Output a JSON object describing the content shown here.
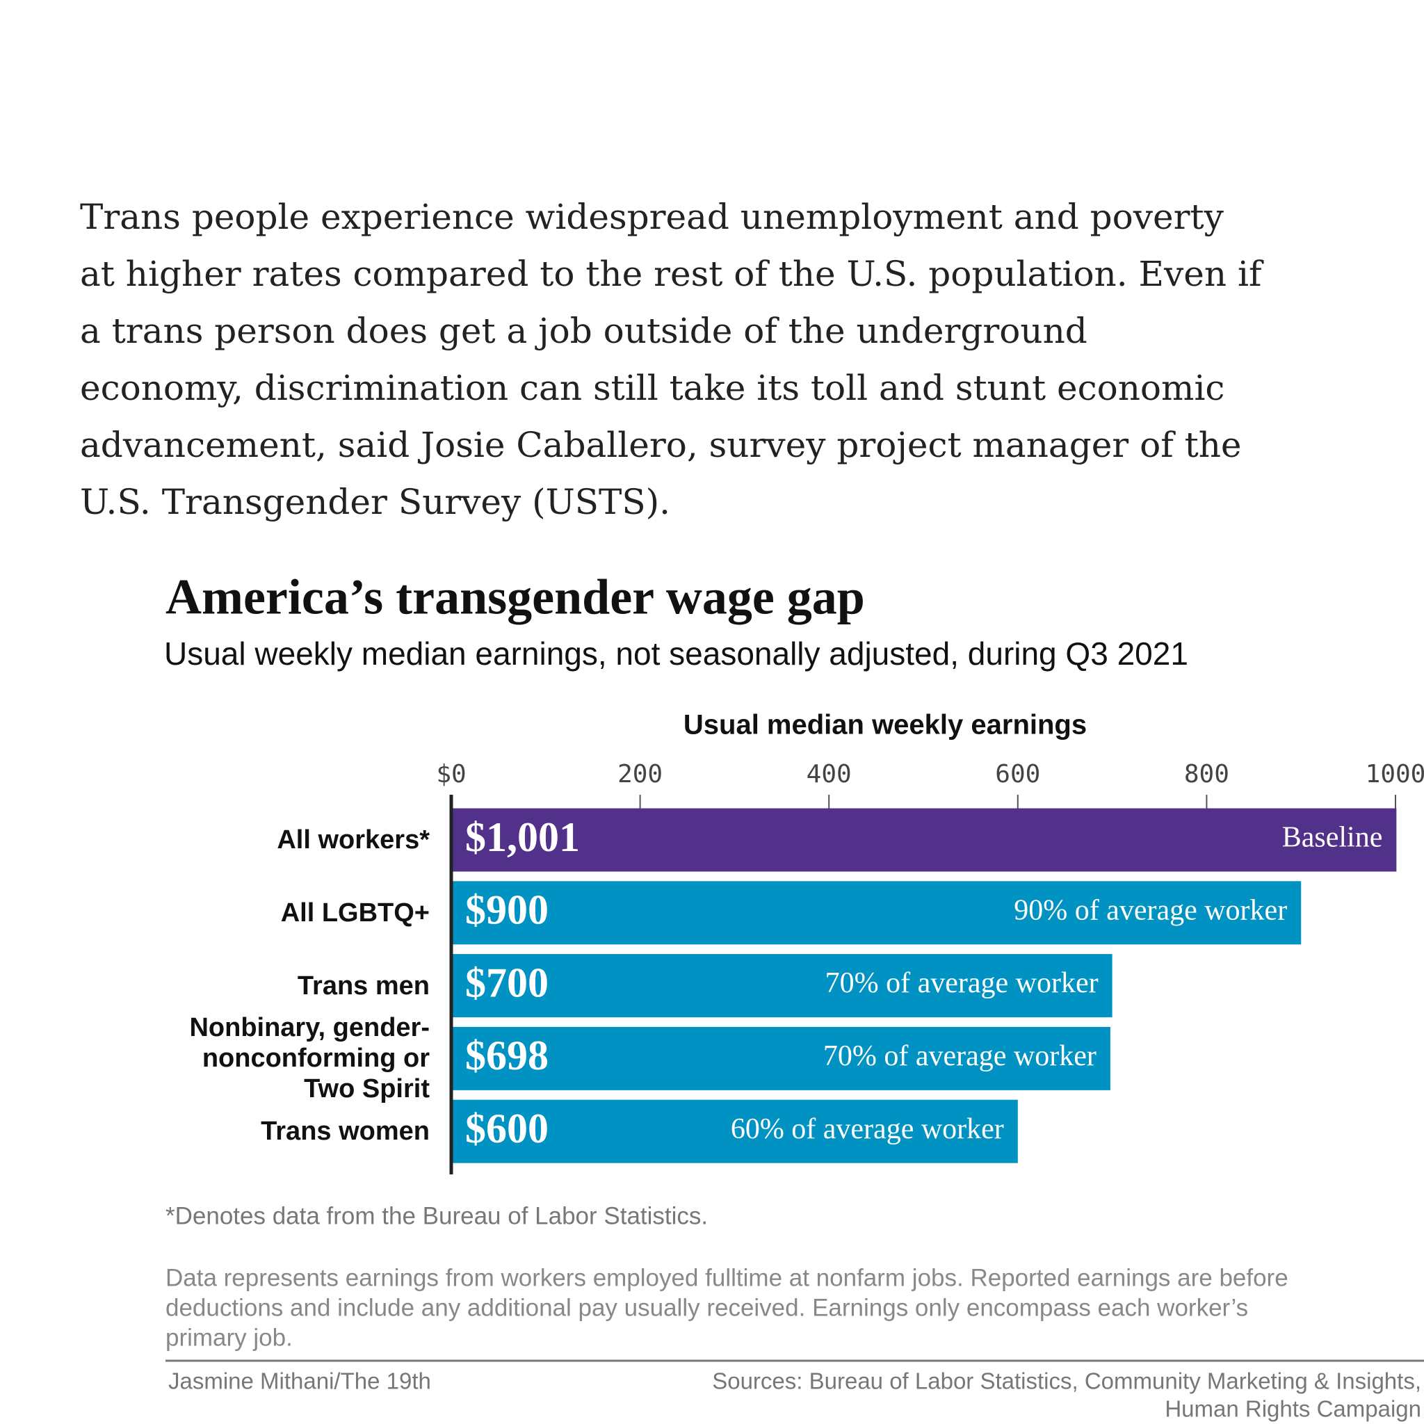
{
  "article": {
    "paragraph": [
      "Trans people experience widespread unemployment and poverty",
      "at higher rates compared to the rest of the U.S. population. Even if",
      "a trans person does get a job outside of the underground",
      "economy, discrimination can still take its toll and stunt economic",
      "advancement, said Josie Caballero, survey project manager of the",
      "U.S. Transgender Survey (USTS)."
    ]
  },
  "chart_data": {
    "type": "bar",
    "orientation": "horizontal",
    "title": "America’s transgender wage gap",
    "subtitle": "Usual weekly median earnings, not seasonally adjusted, during Q3 2021",
    "x_label": "Usual median weekly earnings",
    "categories": [
      "All workers*",
      "All LGBTQ+",
      "Trans men",
      "Nonbinary, gender-nonconforming or Two Spirit",
      "Trans women"
    ],
    "values": [
      1001,
      900,
      700,
      698,
      600
    ],
    "value_labels": [
      "$1,001",
      "$900",
      "$700",
      "$698",
      "$600"
    ],
    "annotations": [
      "Baseline",
      "90% of average worker",
      "70% of average worker",
      "70% of average worker",
      "60% of average worker"
    ],
    "colors": [
      "#52318a",
      "#0092c2",
      "#0092c2",
      "#0092c2",
      "#0092c2"
    ],
    "xlim": [
      0,
      1000
    ],
    "xticks": [
      {
        "value": 0,
        "label": "$0"
      },
      200,
      400,
      600,
      800,
      1000
    ],
    "footnote": "*Denotes data from the Bureau of Labor Statistics.",
    "notes": [
      "Data represents earnings from workers employed fulltime at nonfarm jobs. Reported earnings are before",
      "deductions and include any additional pay usually received. Earnings only encompass each worker’s",
      "primary job."
    ],
    "credit": "Jasmine Mithani/The 19th",
    "sources": [
      "Sources: Bureau of Labor Statistics, Community Marketing & Insights,",
      "Human Rights Campaign"
    ]
  }
}
